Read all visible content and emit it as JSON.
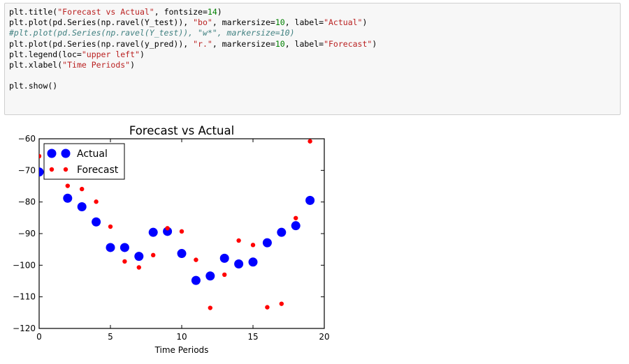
{
  "code_cell": {
    "lines": [
      [
        {
          "t": "plt.title("
        },
        {
          "t": "\"Forecast vs Actual\"",
          "c": "str"
        },
        {
          "t": ", fontsize="
        },
        {
          "t": "14",
          "c": "num"
        },
        {
          "t": ")"
        }
      ],
      [
        {
          "t": "plt.plot(pd.Series(np.ravel(Y_test)), "
        },
        {
          "t": "\"bo\"",
          "c": "str"
        },
        {
          "t": ", markersize="
        },
        {
          "t": "10",
          "c": "num"
        },
        {
          "t": ", label="
        },
        {
          "t": "\"Actual\"",
          "c": "str"
        },
        {
          "t": ")"
        }
      ],
      [
        {
          "t": "#plt.plot(pd.Series(np.ravel(Y_test)), \"w*\", markersize=10)",
          "c": "comment"
        }
      ],
      [
        {
          "t": "plt.plot(pd.Series(np.ravel(y_pred)), "
        },
        {
          "t": "\"r.\"",
          "c": "str"
        },
        {
          "t": ", markersize="
        },
        {
          "t": "10",
          "c": "num"
        },
        {
          "t": ", label="
        },
        {
          "t": "\"Forecast\"",
          "c": "str"
        },
        {
          "t": ")"
        }
      ],
      [
        {
          "t": "plt.legend(loc="
        },
        {
          "t": "\"upper left\"",
          "c": "str"
        },
        {
          "t": ")"
        }
      ],
      [
        {
          "t": "plt.xlabel("
        },
        {
          "t": "\"Time Periods\"",
          "c": "str"
        },
        {
          "t": ")"
        }
      ],
      [
        {
          "t": ""
        }
      ],
      [
        {
          "t": "plt.show()"
        }
      ]
    ]
  },
  "chart_data": {
    "type": "scatter",
    "title": "Forecast vs Actual",
    "xlabel": "Time Periods",
    "ylabel": "",
    "xlim": [
      0,
      20
    ],
    "ylim": [
      -120,
      -60
    ],
    "xticks": [
      0,
      5,
      10,
      15,
      20
    ],
    "yticks": [
      -60,
      -70,
      -80,
      -90,
      -100,
      -110,
      -120
    ],
    "legend_position": "upper-left",
    "grid": false,
    "series": [
      {
        "name": "Actual",
        "color": "#0000ff",
        "marker": "large-circle",
        "x": [
          0,
          1,
          2,
          3,
          4,
          5,
          6,
          7,
          8,
          9,
          10,
          11,
          12,
          13,
          14,
          15,
          16,
          17,
          18,
          19
        ],
        "y": [
          -70.5,
          -69.5,
          -78.8,
          -81.5,
          -86.3,
          -94.4,
          -94.4,
          -97.2,
          -89.6,
          -89.3,
          -96.3,
          -104.8,
          -103.4,
          -97.8,
          -99.6,
          -99.0,
          -92.9,
          -89.6,
          -87.5,
          -79.5
        ]
      },
      {
        "name": "Forecast",
        "color": "#ff0000",
        "marker": "small-dot",
        "x": [
          0,
          1,
          2,
          3,
          4,
          5,
          6,
          7,
          8,
          9,
          10,
          11,
          12,
          13,
          14,
          15,
          16,
          17,
          18,
          19
        ],
        "y": [
          -65.5,
          -69.0,
          -74.9,
          -75.9,
          -79.9,
          -87.8,
          -98.8,
          -100.7,
          -96.8,
          -88.3,
          -89.3,
          -98.3,
          -113.5,
          -103.0,
          -92.2,
          -93.6,
          -113.3,
          -112.2,
          -85.1,
          -60.8
        ]
      }
    ]
  }
}
